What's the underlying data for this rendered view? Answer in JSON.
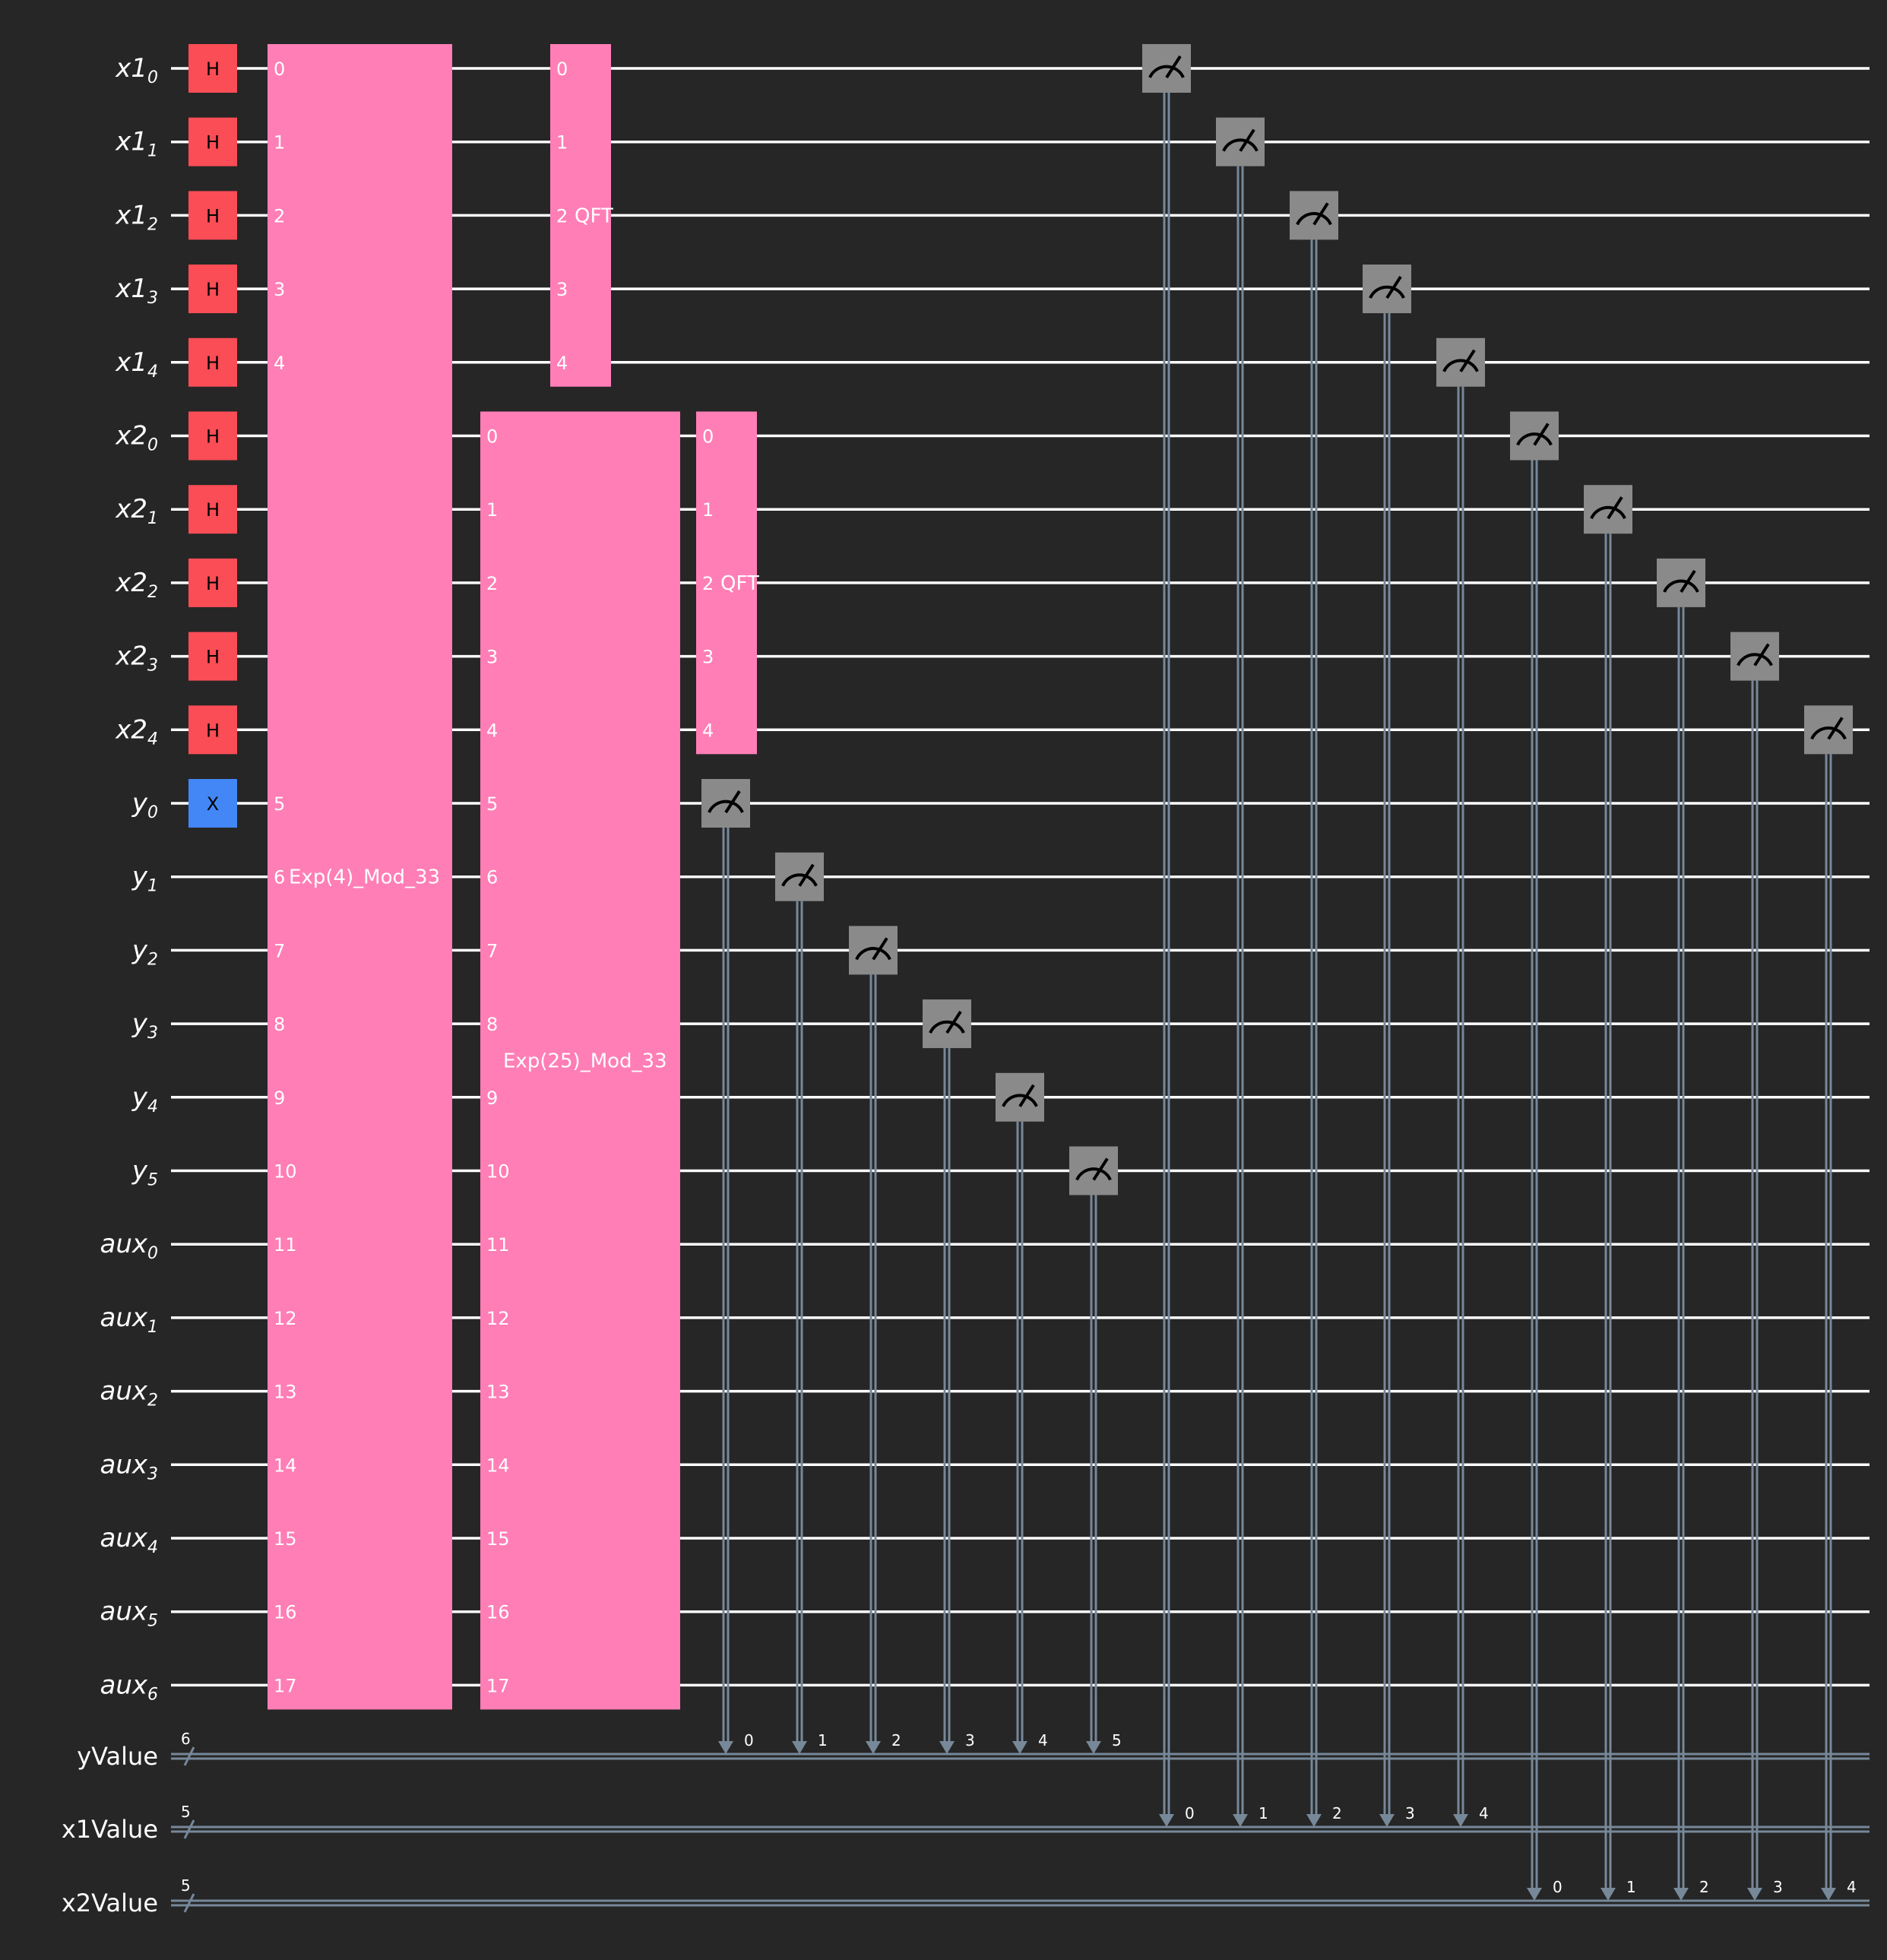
{
  "qubits": [
    {
      "base": "x1",
      "sub": "0"
    },
    {
      "base": "x1",
      "sub": "1"
    },
    {
      "base": "x1",
      "sub": "2"
    },
    {
      "base": "x1",
      "sub": "3"
    },
    {
      "base": "x1",
      "sub": "4"
    },
    {
      "base": "x2",
      "sub": "0"
    },
    {
      "base": "x2",
      "sub": "1"
    },
    {
      "base": "x2",
      "sub": "2"
    },
    {
      "base": "x2",
      "sub": "3"
    },
    {
      "base": "x2",
      "sub": "4"
    },
    {
      "base": "y",
      "sub": "0"
    },
    {
      "base": "y",
      "sub": "1"
    },
    {
      "base": "y",
      "sub": "2"
    },
    {
      "base": "y",
      "sub": "3"
    },
    {
      "base": "y",
      "sub": "4"
    },
    {
      "base": "y",
      "sub": "5"
    },
    {
      "base": "aux",
      "sub": "0"
    },
    {
      "base": "aux",
      "sub": "1"
    },
    {
      "base": "aux",
      "sub": "2"
    },
    {
      "base": "aux",
      "sub": "3"
    },
    {
      "base": "aux",
      "sub": "4"
    },
    {
      "base": "aux",
      "sub": "5"
    },
    {
      "base": "aux",
      "sub": "6"
    }
  ],
  "classical": [
    {
      "name": "yValue",
      "size": "6"
    },
    {
      "name": "x1Value",
      "size": "5"
    },
    {
      "name": "x2Value",
      "size": "5"
    }
  ],
  "single_gates": [
    {
      "label": "H",
      "qubits": [
        0,
        1,
        2,
        3,
        4,
        5,
        6,
        7,
        8,
        9
      ],
      "color": "#fa4d56",
      "text_color": "#000000"
    },
    {
      "label": "X",
      "qubits": [
        10
      ],
      "color": "#4287f5",
      "text_color": "#000000"
    }
  ],
  "multi_gates": [
    {
      "label": "Exp(4)_Mod_33",
      "qubits": [
        0,
        1,
        2,
        3,
        4,
        10,
        11,
        12,
        13,
        14,
        15,
        16,
        17,
        18,
        19,
        20,
        21,
        22
      ],
      "pins": [
        "0",
        "1",
        "2",
        "3",
        "4",
        "5",
        "6",
        "7",
        "8",
        "9",
        "10",
        "11",
        "12",
        "13",
        "14",
        "15",
        "16",
        "17"
      ],
      "label_row": 11,
      "color": "#ff7eb6"
    },
    {
      "label": "QFT",
      "qubits": [
        0,
        1,
        2,
        3,
        4
      ],
      "pins": [
        "0",
        "1",
        "2",
        "3",
        "4"
      ],
      "label_row": 2,
      "color": "#ff7eb6"
    },
    {
      "label": "Exp(25)_Mod_33",
      "qubits": [
        5,
        6,
        7,
        8,
        9,
        10,
        11,
        12,
        13,
        14,
        15,
        16,
        17,
        18,
        19,
        20,
        21,
        22
      ],
      "pins": [
        "0",
        "1",
        "2",
        "3",
        "4",
        "5",
        "6",
        "7",
        "8",
        "9",
        "10",
        "11",
        "12",
        "13",
        "14",
        "15",
        "16",
        "17"
      ],
      "label_row": 13.5,
      "color": "#ff7eb6"
    },
    {
      "label": "QFT",
      "qubits": [
        5,
        6,
        7,
        8,
        9
      ],
      "pins": [
        "0",
        "1",
        "2",
        "3",
        "4"
      ],
      "label_row": 7,
      "color": "#ff7eb6"
    }
  ],
  "measurements": [
    {
      "qubit": 10,
      "creg": 0,
      "bit": "0"
    },
    {
      "qubit": 11,
      "creg": 0,
      "bit": "1"
    },
    {
      "qubit": 12,
      "creg": 0,
      "bit": "2"
    },
    {
      "qubit": 13,
      "creg": 0,
      "bit": "3"
    },
    {
      "qubit": 14,
      "creg": 0,
      "bit": "4"
    },
    {
      "qubit": 15,
      "creg": 0,
      "bit": "5"
    },
    {
      "qubit": 0,
      "creg": 1,
      "bit": "0"
    },
    {
      "qubit": 1,
      "creg": 1,
      "bit": "1"
    },
    {
      "qubit": 2,
      "creg": 1,
      "bit": "2"
    },
    {
      "qubit": 3,
      "creg": 1,
      "bit": "3"
    },
    {
      "qubit": 4,
      "creg": 1,
      "bit": "4"
    },
    {
      "qubit": 5,
      "creg": 2,
      "bit": "0"
    },
    {
      "qubit": 6,
      "creg": 2,
      "bit": "1"
    },
    {
      "qubit": 7,
      "creg": 2,
      "bit": "2"
    },
    {
      "qubit": 8,
      "creg": 2,
      "bit": "3"
    },
    {
      "qubit": 9,
      "creg": 2,
      "bit": "4"
    }
  ],
  "colors": {
    "background": "#262626",
    "wire": "#ffffff",
    "classical_wire": "#778899",
    "measure_box": "#8a8a8a"
  }
}
